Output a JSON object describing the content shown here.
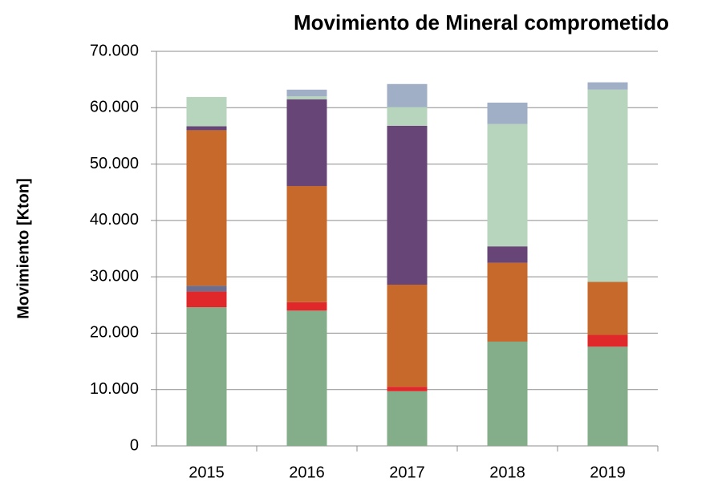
{
  "chart_data": {
    "type": "stacked_bar",
    "title": "Movimiento de Mineral comprometido",
    "y_label": "Movimiento [Kton]",
    "categories": [
      "2015",
      "2016",
      "2017",
      "2018",
      "2019"
    ],
    "series": [
      {
        "color": "#84ad8a",
        "values": [
          24600,
          24000,
          9700,
          18500,
          17600
        ]
      },
      {
        "color": "#e0282a",
        "values": [
          2800,
          1500,
          800,
          0,
          2100
        ]
      },
      {
        "color": "#6b6e8f",
        "values": [
          1000,
          0,
          0,
          0,
          0
        ]
      },
      {
        "color": "#c8692c",
        "values": [
          27600,
          20600,
          18100,
          14000,
          9400
        ]
      },
      {
        "color": "#674577",
        "values": [
          700,
          15400,
          28200,
          2900,
          0
        ]
      },
      {
        "color": "#b7d5bc",
        "values": [
          5200,
          500,
          3300,
          21700,
          34100
        ]
      },
      {
        "color": "#a1afc6",
        "values": [
          0,
          1200,
          4100,
          3800,
          1300
        ]
      }
    ],
    "ylim": [
      0,
      70000
    ],
    "yticks": [
      0,
      {
        "value": 10000,
        "label": "10.000"
      },
      {
        "value": 20000,
        "label": "20.000"
      },
      {
        "value": 30000,
        "label": "30.000"
      },
      {
        "value": 40000,
        "label": "40.000"
      },
      {
        "value": 50000,
        "label": "50.000"
      },
      {
        "value": 60000,
        "label": "60.000"
      },
      {
        "value": 70000,
        "label": "70.000"
      }
    ],
    "grid": true
  }
}
